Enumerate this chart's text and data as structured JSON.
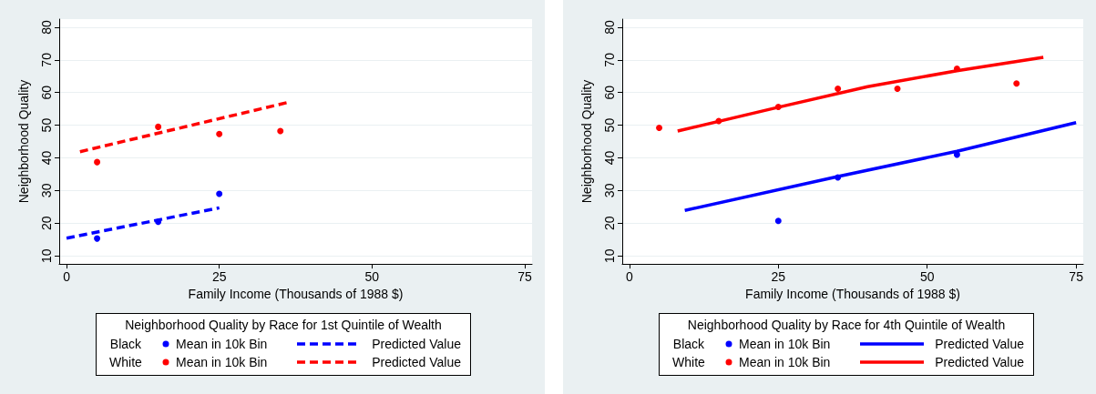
{
  "chart_data": [
    {
      "type": "scatter",
      "xlabel": "Family Income (Thousands of 1988 $)",
      "ylabel": "Neighborhood Quality",
      "legend_title": "Neighborhood Quality by Race for 1st Quintile of Wealth",
      "annotations": [
        "Black",
        "White"
      ],
      "xlim": [
        -1.2,
        76.2
      ],
      "xticks": [
        0,
        25,
        50,
        75
      ],
      "ylim": [
        7.5,
        82.5
      ],
      "yticks": [
        10,
        20,
        30,
        40,
        50,
        60,
        70,
        80
      ],
      "grid": "y",
      "legend": "bottom",
      "marker": "circle",
      "series": [
        {
          "name": "Mean in 10k Bin",
          "color": "#0000ff",
          "x": [
            5,
            15,
            25
          ],
          "values": [
            15.3,
            20.4,
            29.0
          ]
        },
        {
          "name": "Mean in 10k Bin",
          "color": "#ff0000",
          "x": [
            5,
            15,
            25,
            35
          ],
          "values": [
            38.7,
            49.5,
            47.3,
            48.2
          ]
        },
        {
          "name": "Predicted Value",
          "type": "line",
          "color": "#0000ff",
          "line_style": "dashed",
          "marker": "none",
          "x": [
            0,
            25
          ],
          "values": [
            15.4,
            24.7
          ]
        },
        {
          "name": "Predicted Value",
          "type": "line",
          "color": "#ff0000",
          "line_style": "dashed",
          "marker": "none",
          "x": [
            2.2,
            36.5
          ],
          "values": [
            41.9,
            57.1
          ]
        }
      ]
    },
    {
      "type": "scatter",
      "xlabel": "Family Income (Thousands of 1988 $)",
      "ylabel": "Neighborhood Quality",
      "legend_title": "Neighborhood Quality by Race for 4th Quintile of Wealth",
      "annotations": [
        "Black",
        "White"
      ],
      "xlim": [
        -1.2,
        76.2
      ],
      "xticks": [
        0,
        25,
        50,
        75
      ],
      "ylim": [
        7.5,
        82.5
      ],
      "yticks": [
        10,
        20,
        30,
        40,
        50,
        60,
        70,
        80
      ],
      "grid": "y",
      "legend": "bottom",
      "marker": "circle",
      "series": [
        {
          "name": "Mean in 10k Bin",
          "color": "#0000ff",
          "x": [
            25,
            35,
            55
          ],
          "values": [
            20.7,
            34.0,
            41.0
          ]
        },
        {
          "name": "Mean in 10k Bin",
          "color": "#ff0000",
          "x": [
            5,
            15,
            25,
            35,
            45,
            55,
            65
          ],
          "values": [
            49.2,
            51.3,
            55.6,
            61.2,
            61.2,
            67.3,
            62.8
          ]
        },
        {
          "name": "Predicted Value",
          "type": "line",
          "color": "#0000ff",
          "line_style": "solid",
          "marker": "none",
          "x": [
            9.3,
            35,
            55,
            75
          ],
          "values": [
            23.9,
            34.3,
            42.0,
            50.8
          ]
        },
        {
          "name": "Predicted Value",
          "type": "line",
          "color": "#ff0000",
          "line_style": "solid",
          "marker": "none",
          "x": [
            8.1,
            25,
            40,
            55,
            69.5
          ],
          "values": [
            48.2,
            55.5,
            61.8,
            66.7,
            70.8
          ]
        }
      ]
    }
  ]
}
